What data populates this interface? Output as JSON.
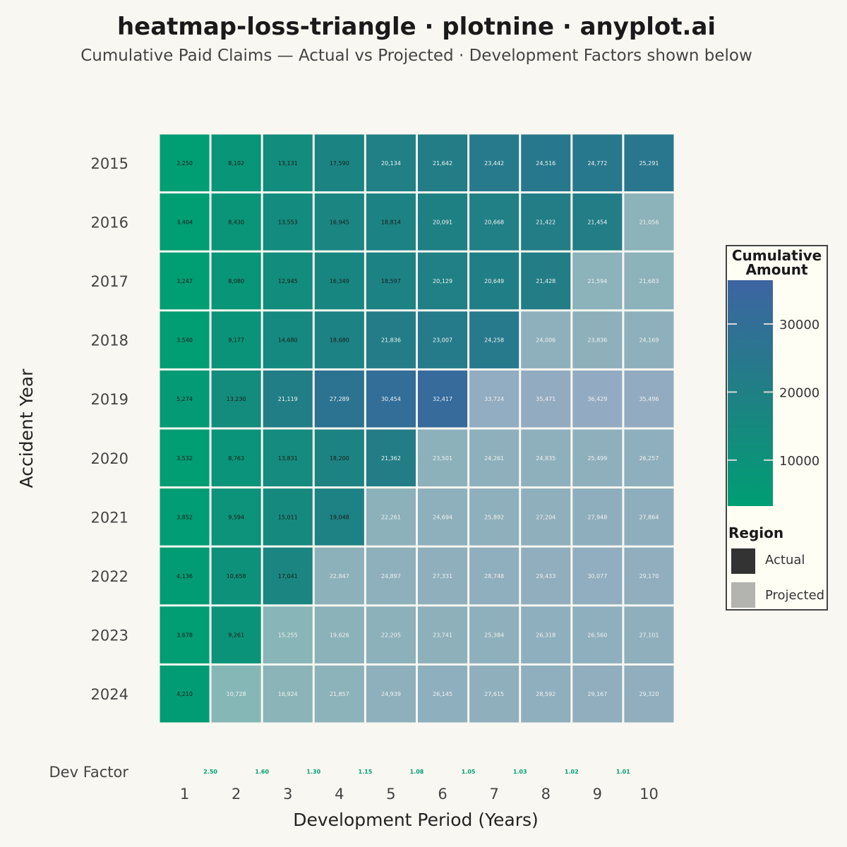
{
  "title": "heatmap-loss-triangle · plotnine · anyplot.ai",
  "subtitle": "Cumulative Paid Claims — Actual vs Projected  ·  Development Factors shown below",
  "colors": {
    "background": "#F9F7F1",
    "gradient_low": "#009E73",
    "gradient_high": "#3D64A3",
    "projected_base": "#B5C6CE",
    "dev_factor_text": "#009E73"
  },
  "chart_data": {
    "type": "heatmap",
    "title": "heatmap-loss-triangle · plotnine · anyplot.ai",
    "xlabel": "Development Period (Years)",
    "ylabel": "Accident Year",
    "x": [
      "1",
      "2",
      "3",
      "4",
      "5",
      "6",
      "7",
      "8",
      "9",
      "10"
    ],
    "y": [
      "2015",
      "2016",
      "2017",
      "2018",
      "2019",
      "2020",
      "2021",
      "2022",
      "2023",
      "2024"
    ],
    "values": [
      [
        3250,
        8102,
        13131,
        17590,
        20134,
        21642,
        23442,
        24516,
        24772,
        25291
      ],
      [
        3404,
        8430,
        13553,
        16945,
        18814,
        20091,
        20668,
        21422,
        21454,
        21056
      ],
      [
        3247,
        8080,
        12945,
        16349,
        18597,
        20129,
        20649,
        21428,
        21594,
        21683
      ],
      [
        3540,
        9177,
        14680,
        18680,
        21836,
        23007,
        24258,
        24006,
        23836,
        24169
      ],
      [
        5274,
        13230,
        21119,
        27289,
        30454,
        32417,
        33724,
        35471,
        36429,
        35496
      ],
      [
        3532,
        8763,
        13831,
        18200,
        21362,
        23501,
        24261,
        24835,
        25499,
        26257
      ],
      [
        3852,
        9594,
        15011,
        19048,
        22261,
        24694,
        25892,
        27204,
        27948,
        27864
      ],
      [
        4136,
        10658,
        17041,
        22847,
        24897,
        27331,
        28748,
        29433,
        30077,
        29170
      ],
      [
        3678,
        9261,
        15255,
        19626,
        22205,
        23741,
        25384,
        26318,
        26560,
        27101
      ],
      [
        4210,
        10728,
        16924,
        21857,
        24939,
        26145,
        27615,
        28592,
        29167,
        29320
      ]
    ],
    "labels": [
      [
        "3,250",
        "8,102",
        "13,131",
        "17,590",
        "20,134",
        "21,642",
        "23,442",
        "24,516",
        "24,772",
        "25,291"
      ],
      [
        "3,404",
        "8,430",
        "13,553",
        "16,945",
        "18,814",
        "20,091",
        "20,668",
        "21,422",
        "21,454",
        "21,056"
      ],
      [
        "3,247",
        "8,080",
        "12,945",
        "16,349",
        "18,597",
        "20,129",
        "20,649",
        "21,428",
        "21,594",
        "21,683"
      ],
      [
        "3,540",
        "9,177",
        "14,680",
        "18,680",
        "21,836",
        "23,007",
        "24,258",
        "24,006",
        "23,836",
        "24,169"
      ],
      [
        "5,274",
        "13,230",
        "21,119",
        "27,289",
        "30,454",
        "32,417",
        "33,724",
        "35,471",
        "36,429",
        "35,496"
      ],
      [
        "3,532",
        "8,763",
        "13,831",
        "18,200",
        "21,362",
        "23,501",
        "24,261",
        "24,835",
        "25,499",
        "26,257"
      ],
      [
        "3,852",
        "9,594",
        "15,011",
        "19,048",
        "22,261",
        "24,694",
        "25,892",
        "27,204",
        "27,948",
        "27,864"
      ],
      [
        "4,136",
        "10,658",
        "17,041",
        "22,847",
        "24,897",
        "27,331",
        "28,748",
        "29,433",
        "30,077",
        "29,170"
      ],
      [
        "3,678",
        "9,261",
        "15,255",
        "19,626",
        "22,205",
        "23,741",
        "25,384",
        "26,318",
        "26,560",
        "27,101"
      ],
      [
        "4,210",
        "10,728",
        "16,924",
        "21,857",
        "24,939",
        "26,145",
        "27,615",
        "28,592",
        "29,167",
        "29,320"
      ]
    ],
    "actual_periods_per_year": [
      10,
      9,
      8,
      7,
      6,
      5,
      4,
      3,
      2,
      1
    ],
    "dev_factor_label": "Dev Factor",
    "dev_factors": [
      "2.50",
      "1.60",
      "1.30",
      "1.15",
      "1.08",
      "1.05",
      "1.03",
      "1.02",
      "1.01"
    ],
    "color_range": [
      3247,
      36429
    ],
    "legend": {
      "position": "right",
      "colorbar_title_line1": "Cumulative",
      "colorbar_title_line2": "Amount",
      "colorbar_ticks": [
        10000,
        20000,
        30000
      ],
      "colorbar_tick_labels": [
        "10000",
        "20000",
        "30000"
      ],
      "region_title": "Region",
      "regions": [
        {
          "label": "Actual",
          "color": "#333333"
        },
        {
          "label": "Projected",
          "color": "#B3B3B0"
        }
      ]
    }
  }
}
